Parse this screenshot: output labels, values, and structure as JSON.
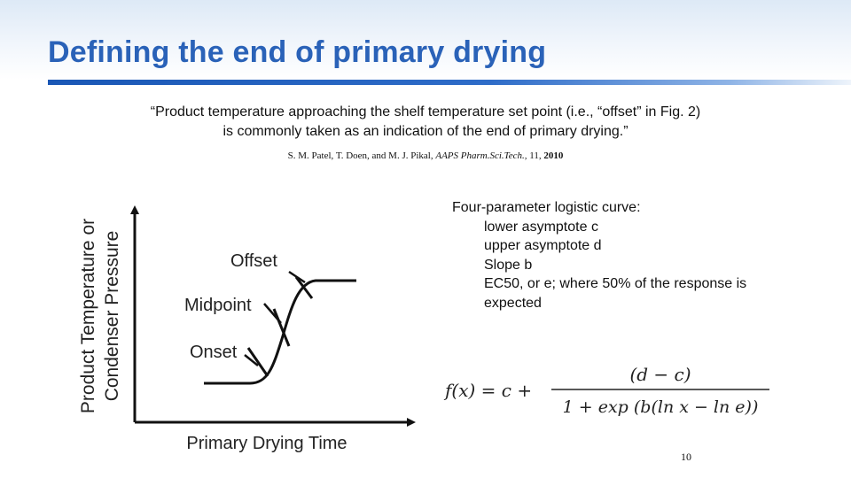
{
  "slide": {
    "title": "Defining the end of primary drying",
    "quote": {
      "line1": "“Product temperature approaching the shelf temperature set point (i.e., “offset” in Fig. 2)",
      "line2": "is commonly taken as an indication of the end of primary drying.”"
    },
    "citation": {
      "authors": "S. M. Patel, T. Doen, and M. J. Pikal,",
      "journal": "AAPS Pharm.Sci.Tech.,",
      "volume": "11,",
      "year": "2010"
    },
    "page_number": "10"
  },
  "figure": {
    "y_axis_label_line1": "Product Temperature or",
    "y_axis_label_line2": "Condenser Pressure",
    "x_axis_label": "Primary Drying Time",
    "annotations": {
      "offset": "Offset",
      "midpoint": "Midpoint",
      "onset": "Onset"
    },
    "line_color": "#111111"
  },
  "model": {
    "heading": "Four-parameter logistic curve:",
    "params": [
      "lower asymptote c",
      "upper asymptote d",
      "Slope b",
      "EC50, or e; where 50% of the response is",
      "expected"
    ]
  },
  "formula": {
    "lhs": "f(x) = c +",
    "numerator": "(d − c)",
    "denominator": "1 + exp (b(ln x − ln e))"
  },
  "colors": {
    "title": "#2a62b8",
    "rule": "#1a57b5"
  }
}
